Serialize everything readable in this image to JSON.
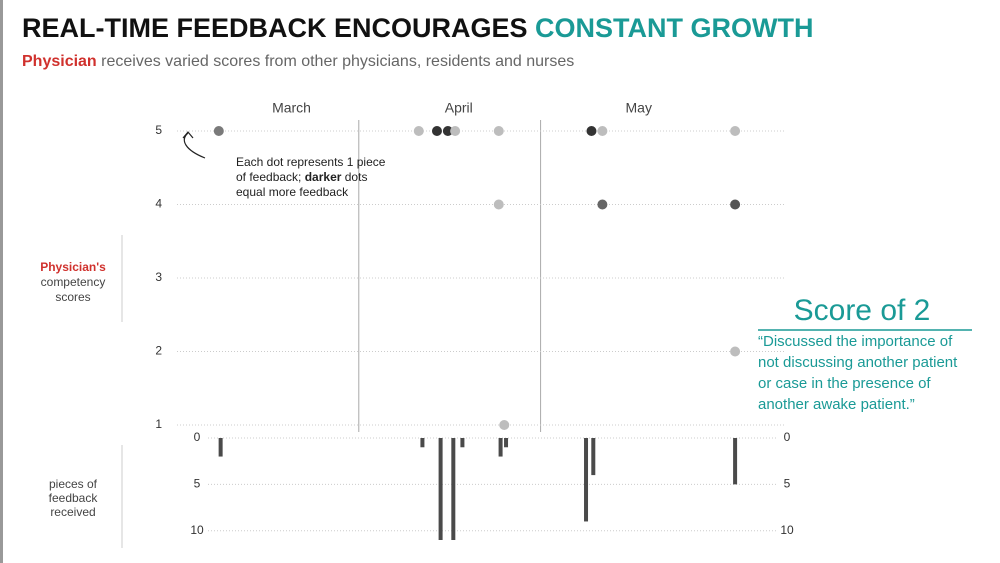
{
  "title": [
    "REAL-TIME FEEDBACK ENCOURAGES ",
    "CONSTANT GROWTH"
  ],
  "subtitle": [
    "Physician",
    " receives varied scores from other physicians, residents and nurses"
  ],
  "chart_data": [
    {
      "type": "scatter",
      "y_label": [
        "Physician's",
        "competency",
        "scores"
      ],
      "xlim": [
        0,
        3.35
      ],
      "xticks": [
        {
          "value": 0.63,
          "label": "March"
        },
        {
          "value": 1.55,
          "label": "April"
        },
        {
          "value": 2.54,
          "label": "May"
        }
      ],
      "dividers": [
        1,
        2
      ],
      "ylim": [
        1,
        5
      ],
      "yticks": [
        1,
        2,
        3,
        4,
        5
      ],
      "grid": true,
      "x": [
        0.23,
        1.33,
        1.43,
        1.49,
        1.53,
        1.77,
        1.77,
        1.8,
        2.28,
        2.34,
        2.34,
        3.07,
        3.07,
        3.07
      ],
      "values": [
        5,
        5,
        5,
        5,
        5,
        5,
        4,
        1,
        5,
        5,
        4,
        5,
        4,
        2
      ],
      "colors": [
        "#7a7a7a",
        "#bdbdbd",
        "#333333",
        "#333333",
        "#bdbdbd",
        "#bdbdbd",
        "#bdbdbd",
        "#bdbdbd",
        "#333333",
        "#bdbdbd",
        "#666666",
        "#bdbdbd",
        "#555555",
        "#bdbdbd"
      ],
      "annotation": [
        [
          {
            "text": "Each dot represents 1 piece",
            "bold": false
          }
        ],
        [
          {
            "text": "of feedback; ",
            "bold": false
          },
          {
            "text": "darker",
            "bold": true
          },
          {
            "text": " dots",
            "bold": false
          }
        ],
        [
          {
            "text": "equal more feedback",
            "bold": false
          }
        ]
      ]
    },
    {
      "type": "bar",
      "y_label": [
        "pieces of",
        "feedback",
        "received"
      ],
      "xlim": [
        0,
        3.35
      ],
      "ylim": [
        0,
        11
      ],
      "yticks": [
        0,
        5,
        10
      ],
      "grid": true,
      "color": "#4a4a4a",
      "x": [
        0.24,
        1.35,
        1.45,
        1.52,
        1.57,
        1.78,
        1.81,
        2.25,
        2.29,
        3.07
      ],
      "values": [
        2,
        1,
        11,
        11,
        1,
        2,
        1,
        9,
        4,
        5
      ]
    }
  ],
  "callout": {
    "heading": "Score of 2",
    "quote": [
      "“Discussed the importance of",
      "not discussing another patient",
      "or case in the presence of",
      "another awake patient.”"
    ]
  }
}
